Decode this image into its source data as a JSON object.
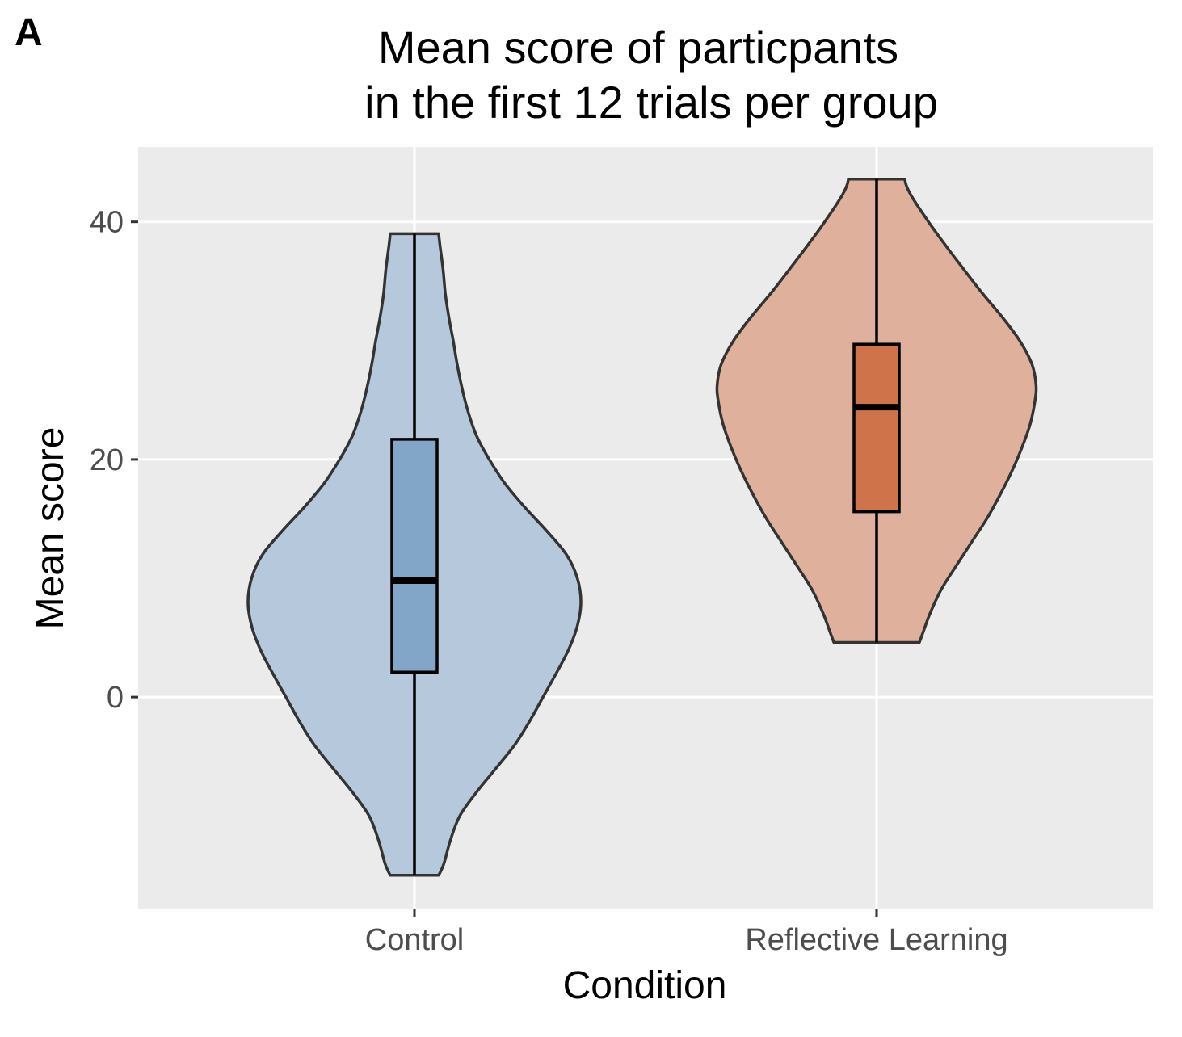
{
  "panel_label": "A",
  "chart_data": {
    "type": "violin",
    "title_lines": [
      "Mean score of particpants",
      "in the first 12 trials per group"
    ],
    "xlabel": "Condition",
    "ylabel": "Mean score",
    "ylim": [
      -17.8,
      46.3
    ],
    "yticks": [
      0,
      20,
      40
    ],
    "ytick_labels": [
      "0",
      "20",
      "40"
    ],
    "grid": true,
    "colors": {
      "panel_bg": "#ebebeb",
      "grid": "#ffffff",
      "outline": "#333333",
      "ticks": "#333333"
    },
    "groups": [
      {
        "name": "Control",
        "violin_fill": "#b6c8dc",
        "box_fill": "#82a6c8",
        "violin_min": -15,
        "violin_max": 39,
        "violin_profile": [
          [
            -15,
            0.055
          ],
          [
            -14,
            0.067
          ],
          [
            -12,
            0.082
          ],
          [
            -10,
            0.103
          ],
          [
            -8,
            0.141
          ],
          [
            -6,
            0.185
          ],
          [
            -4,
            0.228
          ],
          [
            -2,
            0.262
          ],
          [
            0,
            0.292
          ],
          [
            2,
            0.322
          ],
          [
            4,
            0.35
          ],
          [
            6,
            0.37
          ],
          [
            8,
            0.378
          ],
          [
            10,
            0.37
          ],
          [
            12,
            0.345
          ],
          [
            14,
            0.3
          ],
          [
            16,
            0.25
          ],
          [
            18,
            0.205
          ],
          [
            20,
            0.17
          ],
          [
            22,
            0.141
          ],
          [
            24,
            0.122
          ],
          [
            26,
            0.108
          ],
          [
            28,
            0.097
          ],
          [
            30,
            0.088
          ],
          [
            32,
            0.078
          ],
          [
            34,
            0.07
          ],
          [
            36,
            0.065
          ],
          [
            38,
            0.058
          ],
          [
            39,
            0.055
          ]
        ],
        "box": {
          "whisker_low": -15,
          "q1": 2.1,
          "median": 9.8,
          "q3": 21.7,
          "whisker_high": 39
        }
      },
      {
        "name": "Reflective Learning",
        "violin_fill": "#dfb09b",
        "box_fill": "#cf734a",
        "violin_min": 4.6,
        "violin_max": 43.6,
        "violin_profile": [
          [
            4.6,
            0.097
          ],
          [
            5.5,
            0.106
          ],
          [
            7,
            0.121
          ],
          [
            9,
            0.146
          ],
          [
            11,
            0.18
          ],
          [
            13,
            0.215
          ],
          [
            15,
            0.25
          ],
          [
            17,
            0.28
          ],
          [
            19,
            0.307
          ],
          [
            21,
            0.33
          ],
          [
            23,
            0.349
          ],
          [
            25,
            0.36
          ],
          [
            26.3,
            0.362
          ],
          [
            28,
            0.353
          ],
          [
            30,
            0.325
          ],
          [
            32,
            0.285
          ],
          [
            34,
            0.24
          ],
          [
            36,
            0.198
          ],
          [
            38,
            0.157
          ],
          [
            40,
            0.118
          ],
          [
            42,
            0.082
          ],
          [
            43,
            0.068
          ],
          [
            43.6,
            0.064
          ]
        ],
        "box": {
          "whisker_low": 4.6,
          "q1": 15.6,
          "median": 24.4,
          "q3": 29.7,
          "whisker_high": 43.6
        }
      }
    ]
  }
}
